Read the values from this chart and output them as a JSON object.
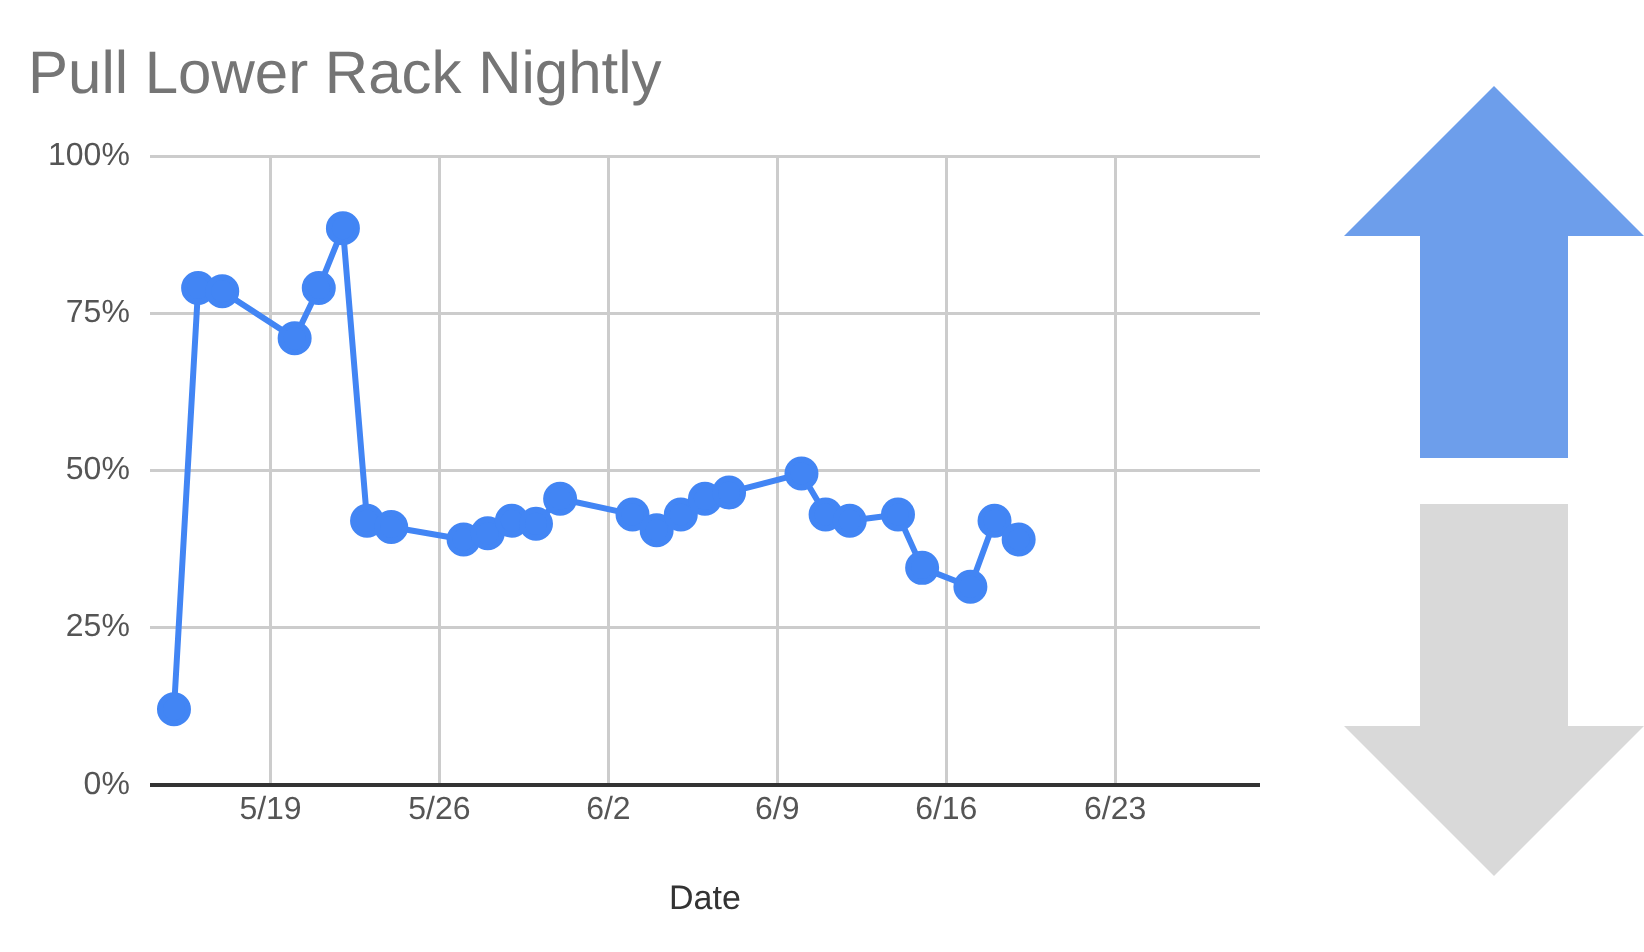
{
  "chart_data": {
    "type": "line",
    "title": "Pull Lower Rack Nightly",
    "xlabel": "Date",
    "x": [
      "--05-15",
      "--05-16",
      "--05-17",
      "--05-20",
      "--05-21",
      "--05-22",
      "--05-23",
      "--05-24",
      "--05-27",
      "--05-28",
      "--05-29",
      "--05-30",
      "--05-31",
      "--06-03",
      "--06-04",
      "--06-05",
      "--06-06",
      "--06-07",
      "--06-10",
      "--06-11",
      "--06-12",
      "--06-14",
      "--06-15",
      "--06-17",
      "--06-18",
      "--06-19"
    ],
    "series": [
      {
        "color": "#4285f4",
        "values": [
          12,
          79,
          78.5,
          71,
          79,
          88.5,
          42,
          41,
          39,
          40,
          42,
          41.5,
          45.5,
          43,
          40.5,
          43,
          45.5,
          46.5,
          49.5,
          43,
          42,
          43,
          34.5,
          31.5,
          42,
          39
        ]
      }
    ],
    "xlim": [
      "--05-14",
      "--06-29"
    ],
    "xticks": [
      {
        "value": "--05-19",
        "label": "5/19"
      },
      {
        "value": "--05-26",
        "label": "5/26"
      },
      {
        "value": "--06-02",
        "label": "6/2"
      },
      {
        "value": "--06-09",
        "label": "6/9"
      },
      {
        "value": "--06-16",
        "label": "6/16"
      },
      {
        "value": "--06-23",
        "label": "6/23"
      }
    ],
    "ylim": [
      0,
      100
    ],
    "yticks": [
      {
        "value": 0,
        "label": "0%"
      },
      {
        "value": 25,
        "label": "25%"
      },
      {
        "value": 50,
        "label": "50%"
      },
      {
        "value": 75,
        "label": "75%"
      },
      {
        "value": 100,
        "label": "100%"
      }
    ],
    "grid": true,
    "legend": false,
    "marker": "circle",
    "line_style": "solid"
  }
}
